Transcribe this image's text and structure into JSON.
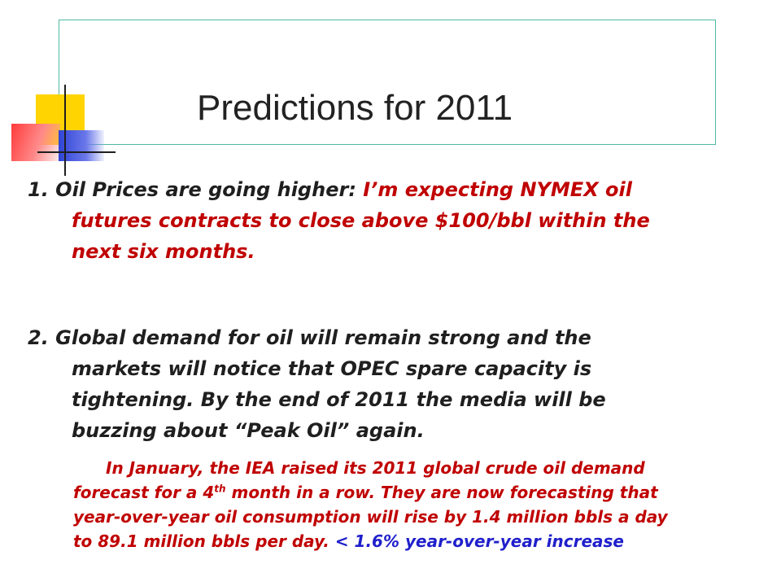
{
  "slide": {
    "title": "Predictions for 2011",
    "point1": {
      "lead": "1.  Oil Prices are going higher:",
      "lines": [
        "I’m expecting NYMEX oil",
        "futures contracts to close above $100/bbl within the",
        "next six months."
      ]
    },
    "point2": {
      "lines": [
        "2.  Global demand for oil will remain strong and the",
        "markets will notice that OPEC spare capacity is",
        "tightening.  By the end of 2011 the media will be",
        "buzzing about “Peak Oil” again."
      ]
    },
    "note": {
      "line1": "In January, the IEA raised its 2011 global crude oil demand",
      "line2_pre": "forecast for a 4",
      "line2_sup": "th",
      "line2_post": " month in a row.  They are now forecasting that",
      "line3": "year-over-year oil consumption will rise by 1.4 million bbls a day",
      "line4": "to 89.1 million bbls per day.",
      "highlight": "< 1.6% year-over-year increase"
    }
  },
  "colors": {
    "emphasis_red": "#c00000",
    "emphasis_blue": "#1f1fcc",
    "title_frame": "#4fb8a4"
  }
}
